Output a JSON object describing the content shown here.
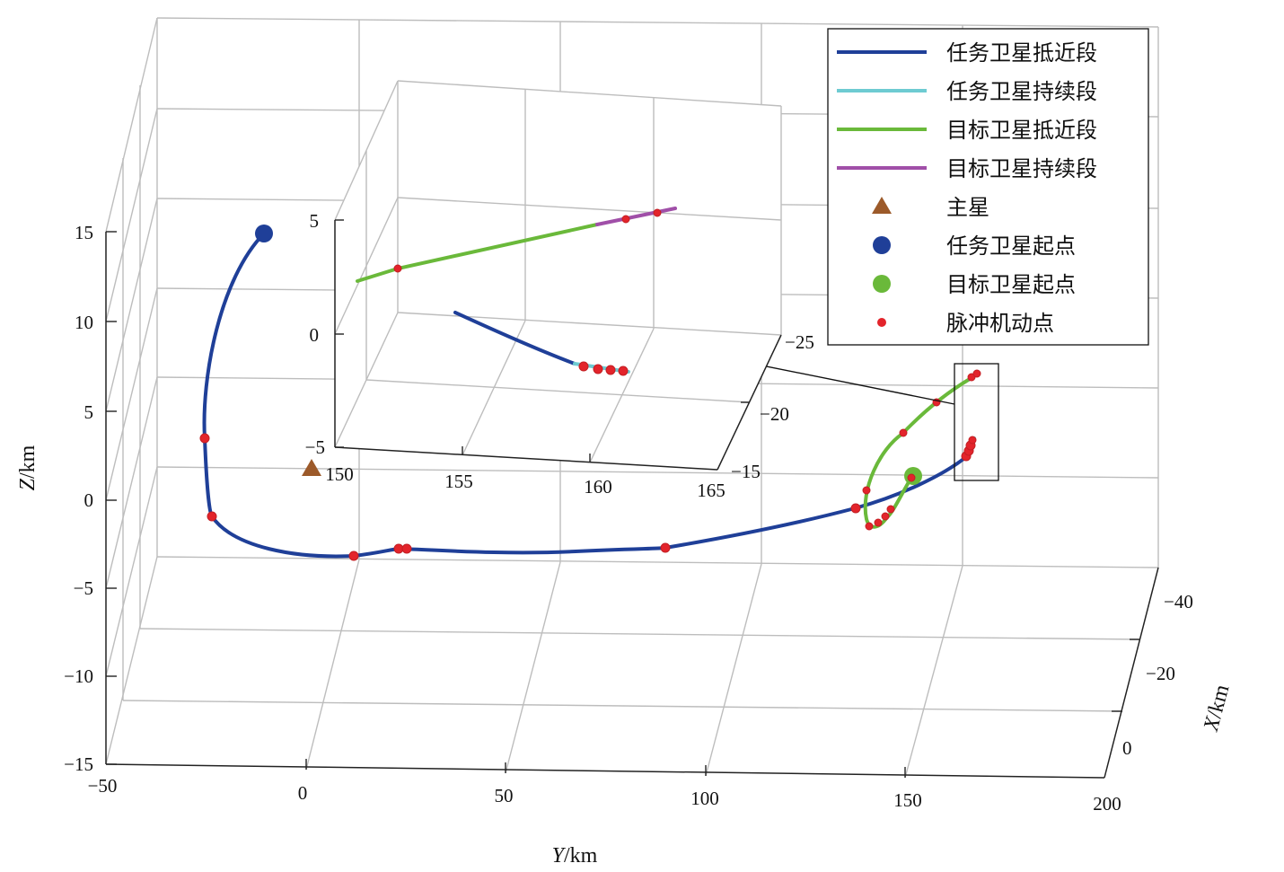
{
  "chart_data": {
    "type": "line-3d",
    "title": "",
    "axes": {
      "x": {
        "label_italic": "X",
        "label_unit": "/km",
        "ticks": [
          "−40",
          "−20",
          "0"
        ]
      },
      "y": {
        "label_italic": "Y",
        "label_unit": "/km",
        "ticks": [
          "−50",
          "0",
          "50",
          "100",
          "150",
          "200"
        ]
      },
      "z": {
        "label_italic": "Z",
        "label_unit": "/km",
        "ticks": [
          "15",
          "10",
          "5",
          "0",
          "−5",
          "−10",
          "−15"
        ]
      }
    },
    "inset": {
      "y_ticks": [
        "150",
        "155",
        "160",
        "165"
      ],
      "z_ticks": [
        "5",
        "0",
        "−5"
      ],
      "x_ticks": [
        "−25",
        "−20",
        "−15"
      ]
    },
    "legend": [
      {
        "label": "任务卫星抵近段",
        "kind": "line",
        "color": "#1f3f98"
      },
      {
        "label": "任务卫星持续段",
        "kind": "line",
        "color": "#6ecbd2"
      },
      {
        "label": "目标卫星抵近段",
        "kind": "line",
        "color": "#6ab93a"
      },
      {
        "label": "目标卫星持续段",
        "kind": "line",
        "color": "#a04fa8"
      },
      {
        "label": "主星",
        "kind": "triangle",
        "color": "#9c5a2a"
      },
      {
        "label": "任务卫星起点",
        "kind": "dot",
        "color": "#1f3f98"
      },
      {
        "label": "目标卫星起点",
        "kind": "dot",
        "color": "#6ab93a"
      },
      {
        "label": "脉冲机动点",
        "kind": "smalldot",
        "color": "#e3242b"
      }
    ],
    "series": [
      {
        "name": "任务卫星抵近段",
        "color": "#1f3f98"
      },
      {
        "name": "任务卫星持续段",
        "color": "#6ecbd2"
      },
      {
        "name": "目标卫星抵近段",
        "color": "#6ab93a"
      },
      {
        "name": "目标卫星持续段",
        "color": "#a04fa8"
      }
    ],
    "grid": true,
    "legend_position": "top-right"
  }
}
